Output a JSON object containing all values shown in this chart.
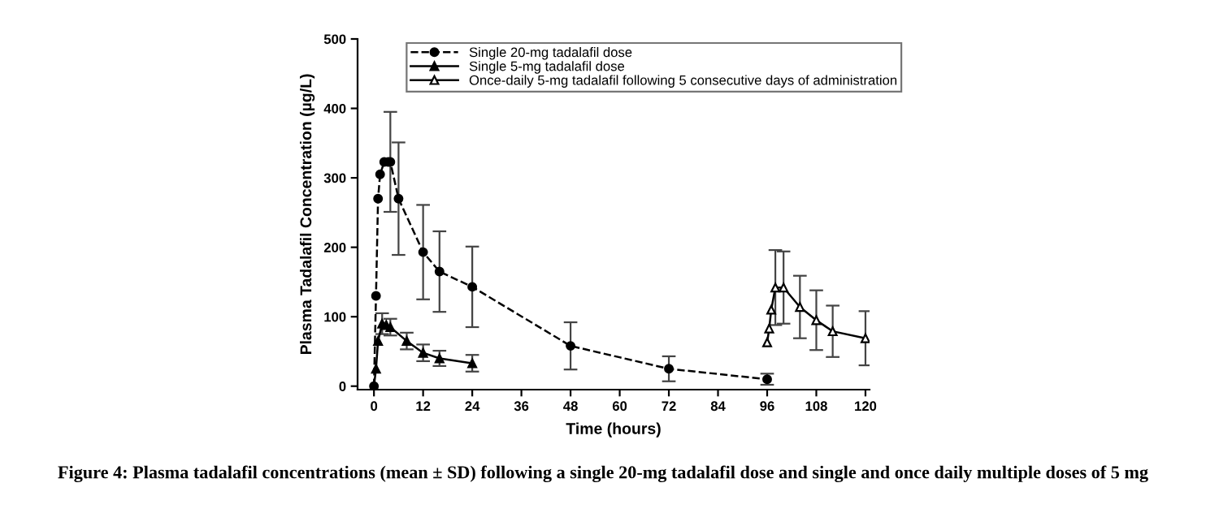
{
  "chart_data": {
    "type": "line",
    "xlabel": "Time (hours)",
    "ylabel": "Plasma Tadalafil Concentration (µg/L)",
    "xlim": [
      -4,
      121
    ],
    "xticks": [
      0,
      12,
      24,
      36,
      48,
      60,
      72,
      84,
      96,
      108,
      120
    ],
    "ylim": [
      -5,
      500
    ],
    "yticks": [
      0,
      100,
      200,
      300,
      400,
      500
    ],
    "grid": false,
    "legend": "top right",
    "series": [
      {
        "name": "Single 20-mg tadalafil dose",
        "color": "#000000",
        "marker": "circle",
        "line_style": "dashed",
        "x": [
          0,
          0.5,
          1,
          1.5,
          2.5,
          3.5,
          4,
          6,
          12,
          16,
          24,
          48,
          72,
          96
        ],
        "values": [
          0,
          130,
          270,
          305,
          323,
          323,
          323,
          270,
          193,
          165,
          143,
          58,
          25,
          10
        ],
        "errors": [
          null,
          null,
          null,
          null,
          null,
          null,
          72,
          81,
          68,
          58,
          58,
          34,
          18,
          8
        ]
      },
      {
        "name": "Single 5-mg tadalafil dose",
        "color": "#000000",
        "marker": "triangle",
        "line_style": "solid",
        "x": [
          0,
          0.5,
          1,
          2,
          3,
          4,
          8,
          12,
          16,
          24
        ],
        "values": [
          0,
          25,
          65,
          90,
          88,
          85,
          65,
          48,
          40,
          33
        ],
        "errors": [
          null,
          null,
          null,
          15,
          null,
          12,
          12,
          12,
          11,
          12
        ]
      },
      {
        "name": "Once-daily 5-mg tadalafil following 5 consecutive days of administration",
        "color": "#000000",
        "marker": "triangle",
        "line_style": "solid",
        "x": [
          96,
          96.5,
          97,
          98,
          100,
          104,
          108,
          112,
          120
        ],
        "values": [
          63,
          83,
          110,
          142,
          142,
          114,
          95,
          79,
          69
        ],
        "errors": [
          null,
          null,
          null,
          54,
          52,
          45,
          43,
          37,
          39
        ]
      }
    ],
    "annotations": [
      "Figure 4: Plasma tadalafil concentrations (mean ± SD) following a single 20-mg tadalafil dose and single and once daily multiple doses of 5 mg"
    ]
  }
}
